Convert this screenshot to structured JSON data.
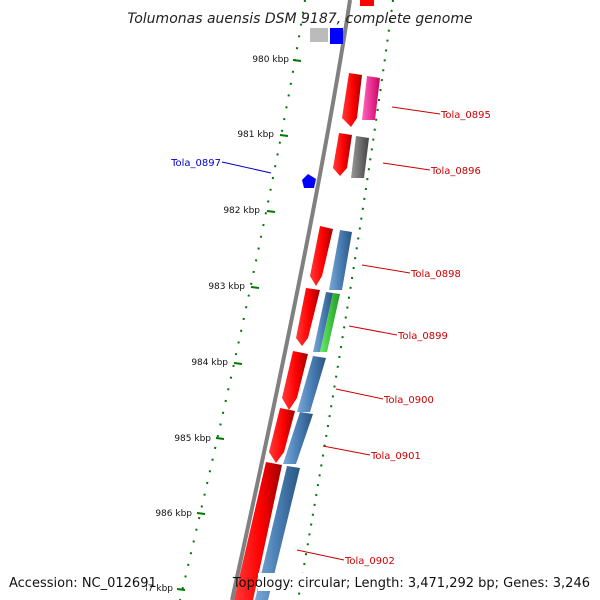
{
  "title": "Tolumonas auensis DSM 9187, complete genome",
  "footer": {
    "accession": "Accession: NC_012691",
    "stats": "Topology: circular; Length: 3,471,292 bp; Genes: 3,246"
  },
  "ticks": [
    "980 kbp",
    "981 kbp",
    "982 kbp",
    "983 kbp",
    "984 kbp",
    "985 kbp",
    "986 kbp",
    "987 kbp"
  ],
  "genes": [
    {
      "label": "Tola_0895",
      "color": "#cc0000"
    },
    {
      "label": "Tola_0896",
      "color": "#cc0000"
    },
    {
      "label": "Tola_0897",
      "color": "#0000cc"
    },
    {
      "label": "Tola_0898",
      "color": "#cc0000"
    },
    {
      "label": "Tola_0899",
      "color": "#cc0000"
    },
    {
      "label": "Tola_0900",
      "color": "#cc0000"
    },
    {
      "label": "Tola_0901",
      "color": "#cc0000"
    },
    {
      "label": "Tola_0902",
      "color": "#cc0000"
    }
  ],
  "colors": {
    "cds": "#ff0000",
    "inner_blue": "#4a7fb5",
    "magenta": "#ff3399",
    "grey": "#666666",
    "green": "#33cc33",
    "blue": "#0000ff",
    "tick": "#007700",
    "backbone": "#888888"
  }
}
